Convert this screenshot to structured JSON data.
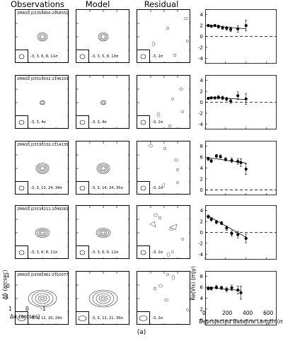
{
  "headers": {
    "observations": "Observations",
    "model": "Model",
    "residual": "Residual"
  },
  "sources": [
    {
      "name": "2MASS J15354856-2958551",
      "obs_levels": "-3, 3, 6, 8, 11σ",
      "model_levels": "-3, 3, 5, 8, 10σ",
      "resid_levels": "-3, 2σ",
      "vis_yticks": [
        "4",
        "2",
        "0",
        "-2",
        "-4"
      ],
      "vis_ylim": [
        -5,
        5
      ],
      "vis_x": [
        30,
        60,
        95,
        130,
        170,
        210,
        250,
        320,
        400
      ],
      "vis_y": [
        2.0,
        1.9,
        2.0,
        1.8,
        1.6,
        1.5,
        1.3,
        1.4,
        2.0
      ],
      "vis_err": [
        0.2,
        0.2,
        0.2,
        0.3,
        0.3,
        0.3,
        0.4,
        0.6,
        1.0
      ],
      "vis_model_start": 2.0,
      "vis_model_end": 1.4
    },
    {
      "name": "2MASS J15514032-2146103",
      "obs_levels": "-3, 3, 4σ",
      "model_levels": "-3, 3, 4σ",
      "resid_levels": "-3, 2σ",
      "vis_yticks": [
        "4",
        "2",
        "0",
        "-2",
        "-4"
      ],
      "vis_ylim": [
        -5,
        5
      ],
      "vis_x": [
        30,
        60,
        95,
        130,
        170,
        210,
        250,
        320,
        400
      ],
      "vis_y": [
        0.7,
        0.8,
        0.8,
        0.9,
        0.8,
        0.6,
        0.2,
        1.2,
        0.6
      ],
      "vis_err": [
        0.2,
        0.2,
        0.2,
        0.3,
        0.3,
        0.3,
        0.4,
        0.7,
        1.0
      ],
      "vis_model_start": 0.9,
      "vis_model_end": 0.5
    },
    {
      "name": "2MASS J15530132-2114135",
      "obs_levels": "-3, 3, 13, 24, 34σ",
      "model_levels": "-3, 3, 14, 24, 35σ",
      "resid_levels": "-3, 2σ",
      "vis_yticks": [
        "8",
        "6",
        "4",
        "2",
        "0"
      ],
      "vis_ylim": [
        -1,
        9
      ],
      "vis_x": [
        30,
        60,
        110,
        150,
        200,
        260,
        320,
        350,
        400
      ],
      "vis_y": [
        5.7,
        5.3,
        6.2,
        6.1,
        5.6,
        5.4,
        5.2,
        5.0,
        3.8
      ],
      "vis_err": [
        0.3,
        0.3,
        0.3,
        0.3,
        0.3,
        0.4,
        0.5,
        0.7,
        1.0
      ],
      "vis_model_start": 5.9,
      "vis_model_end": 4.9
    },
    {
      "name": "2MASS J15534211-2049282",
      "obs_levels": "-3, 3, 6, 8, 11σ",
      "model_levels": "-3, 3, 6, 9, 11σ",
      "resid_levels": "-3, 2σ",
      "vis_yticks": [
        "4",
        "2",
        "0",
        "-2",
        "-4"
      ],
      "vis_ylim": [
        -5,
        5
      ],
      "vis_x": [
        30,
        60,
        110,
        160,
        210,
        260,
        320,
        400
      ],
      "vis_y": [
        2.9,
        2.4,
        1.9,
        1.7,
        0.8,
        -0.2,
        -0.4,
        -1.1
      ],
      "vis_err": [
        0.3,
        0.3,
        0.3,
        0.3,
        0.4,
        0.5,
        0.6,
        0.8
      ],
      "vis_model_start": 3.0,
      "vis_model_end": -0.9
    },
    {
      "name": "2MASS J15582981-2310077",
      "obs_levels": "-3, 3, 12, 20, 29σ",
      "model_levels": "-3, 3, 12, 21, 30σ",
      "resid_levels": "-3, 2σ",
      "vis_yticks": [
        "8",
        "6",
        "4",
        "2",
        "0"
      ],
      "vis_ylim": [
        -1,
        9
      ],
      "vis_x": [
        30,
        60,
        110,
        160,
        210,
        260,
        320,
        350
      ],
      "vis_y": [
        5.8,
        5.8,
        6.0,
        5.9,
        5.6,
        5.9,
        5.5,
        5.0
      ],
      "vis_err": [
        0.3,
        0.3,
        0.3,
        0.3,
        0.4,
        0.5,
        0.7,
        1.2
      ],
      "vis_model_start": 6.0,
      "vis_model_end": 5.4
    }
  ],
  "vis_xticks": [
    "0",
    "200",
    "400",
    "600"
  ],
  "vis_xlim": [
    0,
    700
  ],
  "vis_ylabel": "Re(Vis) (mJy)",
  "vis_xlabel": "Deprojected Baseline Length (m)",
  "obs_ylabel": "Δδ (arcsec)",
  "obs_xlabel": "Δα (arcsec)",
  "obs_xticks": [
    "1",
    "0",
    "-1"
  ],
  "obs_yticks": [
    "1",
    "0",
    "-1"
  ],
  "caption": "(a)"
}
